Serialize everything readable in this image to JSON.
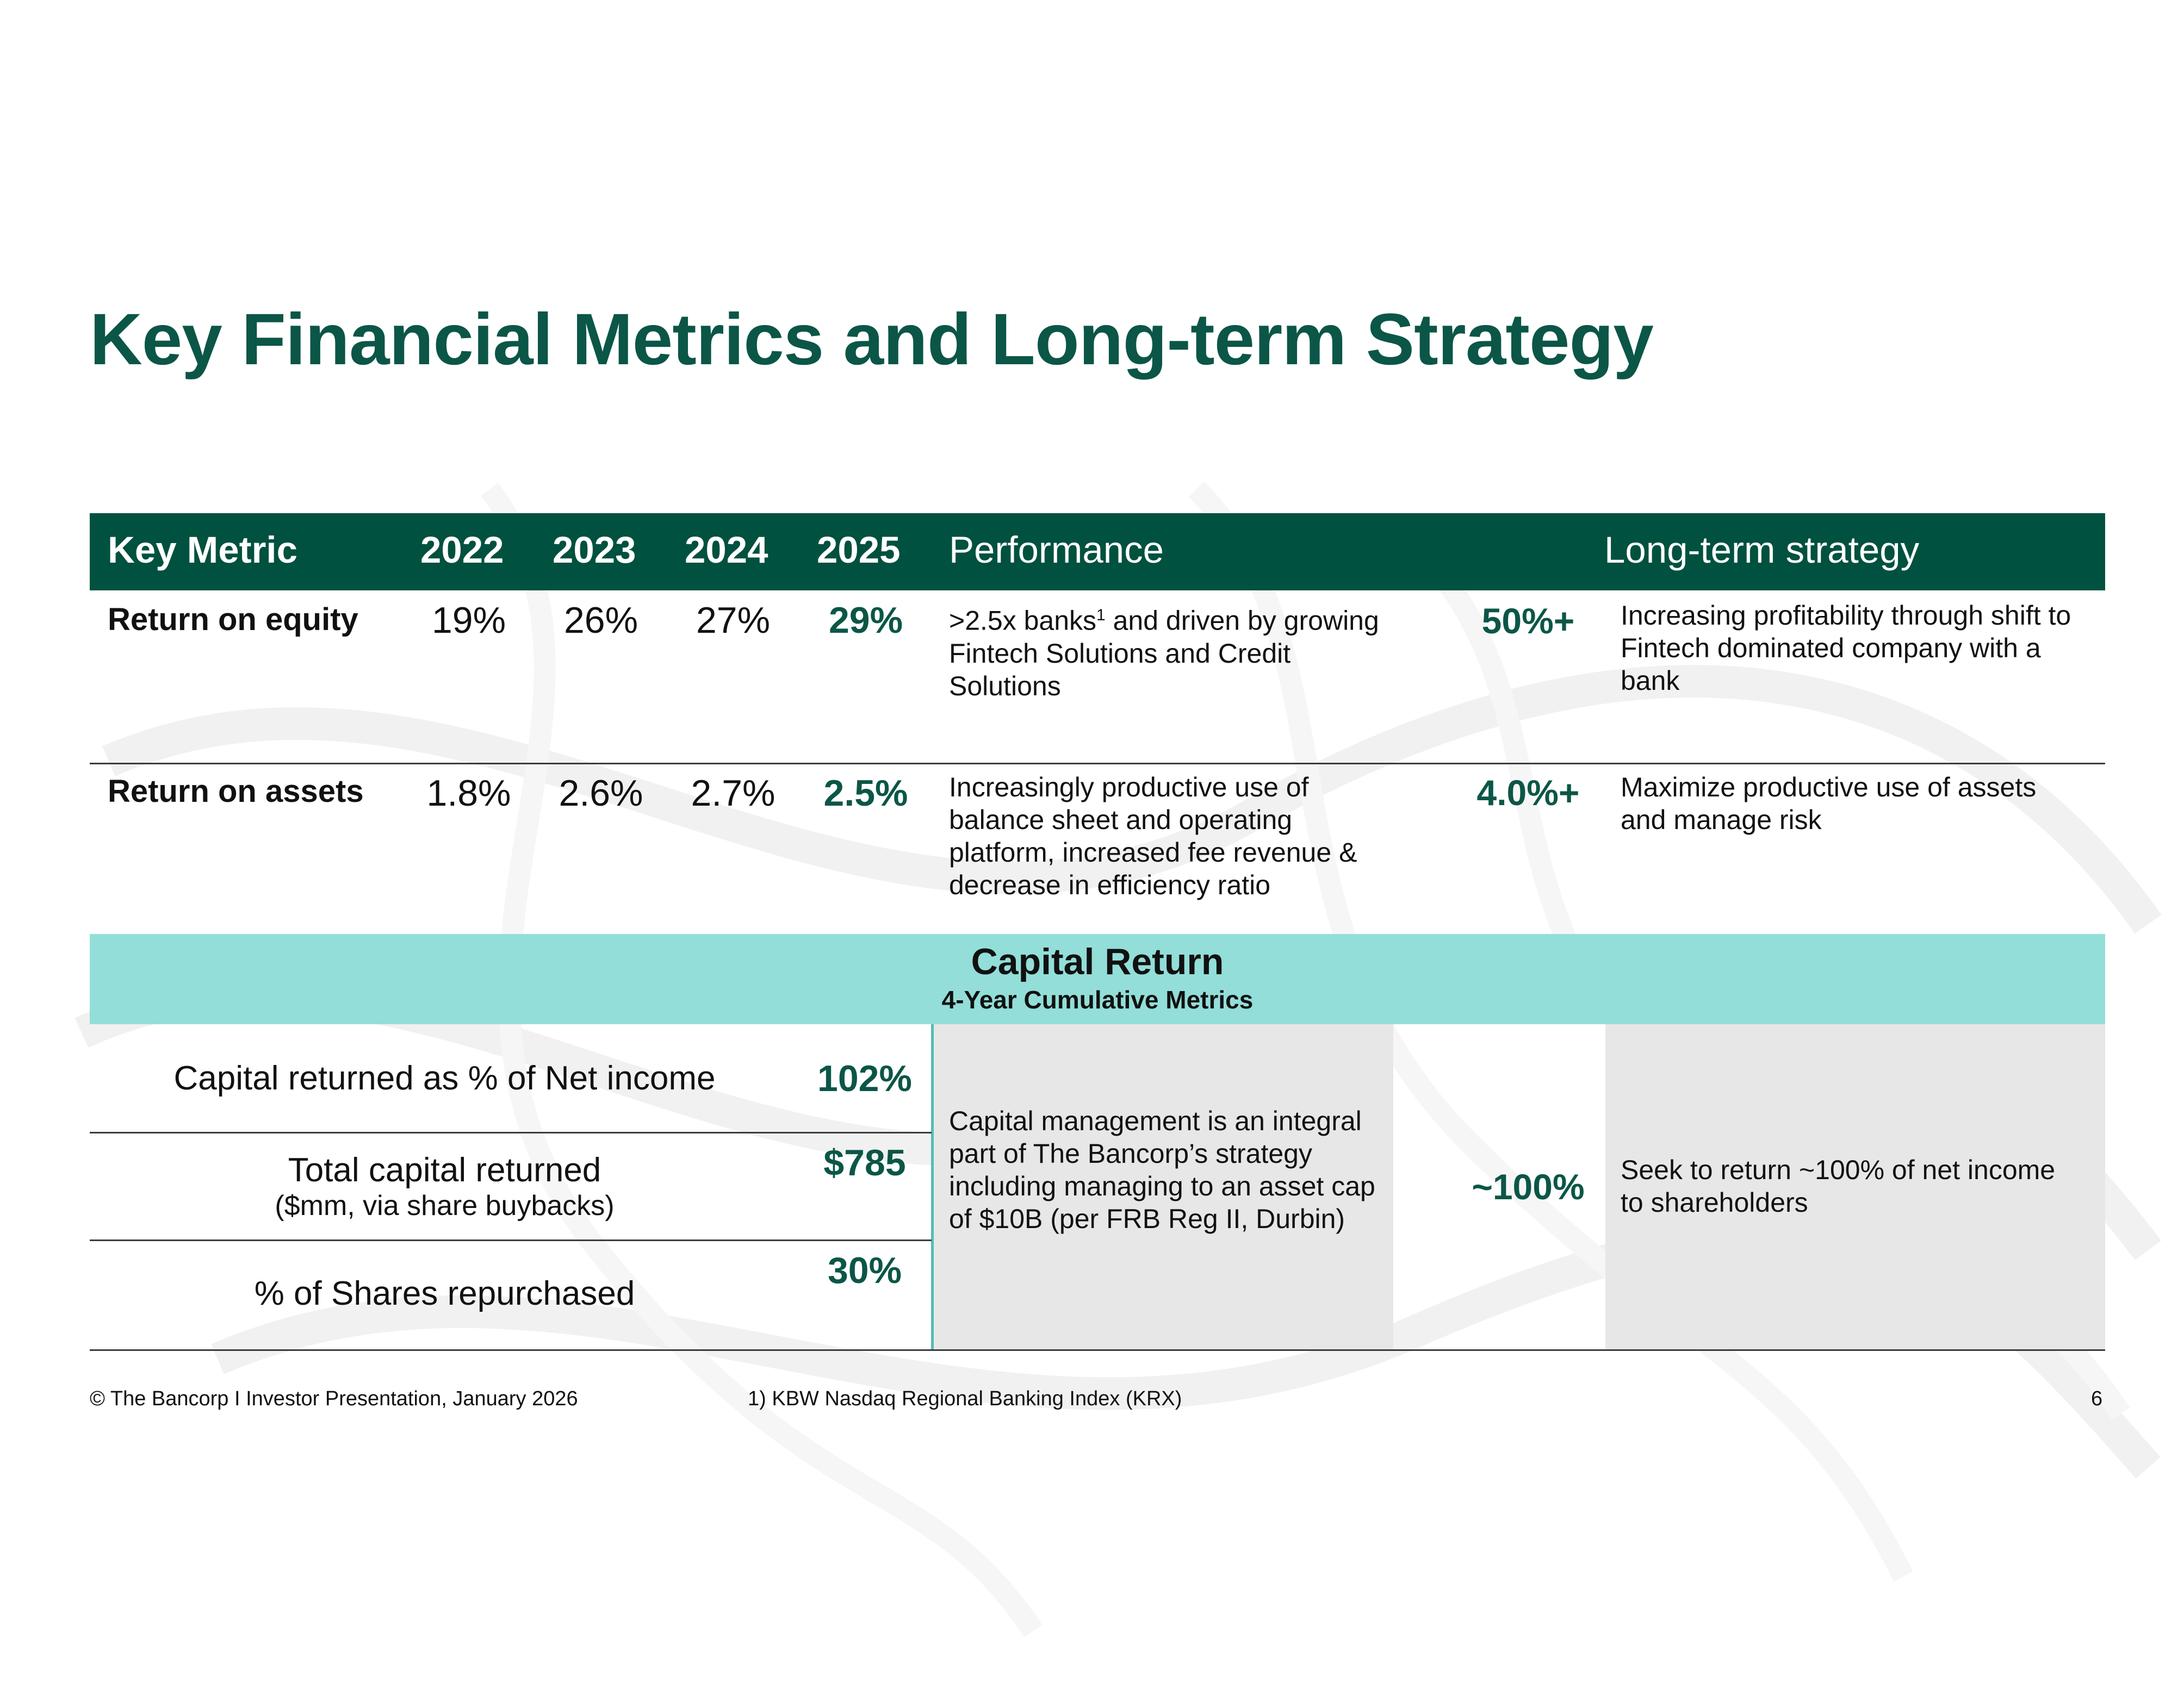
{
  "title": "Key Financial Metrics and Long-term Strategy",
  "header": {
    "key_metric": "Key Metric",
    "years": [
      "2022",
      "2023",
      "2024",
      "2025"
    ],
    "performance": "Performance",
    "long_term_strategy": "Long-term strategy"
  },
  "rows": [
    {
      "label": "Return on equity",
      "values": [
        "19%",
        "26%",
        "27%",
        "29%"
      ],
      "performance": ">2.5x banks",
      "performance_sup": "1",
      "performance_rest": " and driven by growing Fintech Solutions and Credit Solutions",
      "target": "50%+",
      "strategy": "Increasing profitability through shift to Fintech dominated company with a bank"
    },
    {
      "label": "Return on assets",
      "values": [
        "1.8%",
        "2.6%",
        "2.7%",
        "2.5%"
      ],
      "performance": "Increasingly productive use of balance sheet and operating platform, increased fee revenue & decrease in efficiency ratio",
      "target": "4.0%+",
      "strategy": "Maximize productive use of assets and manage risk"
    }
  ],
  "capital_return": {
    "title": "Capital Return",
    "subtitle": "4-Year Cumulative Metrics",
    "items": [
      {
        "label": "Capital returned as % of Net income",
        "value": "102%"
      },
      {
        "label": "Total capital returned",
        "note": "($mm, via share buybacks)",
        "value": "$785"
      },
      {
        "label": "% of Shares repurchased",
        "value": "30%"
      }
    ],
    "performance": "Capital management is an integral part of The Bancorp’s strategy including managing to an asset cap of $10B (per FRB Reg II, Durbin)",
    "target": "~100%",
    "strategy": "Seek to return ~100% of net income to shareholders"
  },
  "footer": {
    "left": "© The Bancorp  I  Investor Presentation, January 2026",
    "footnote": "1) KBW Nasdaq Regional Banking Index (KRX)",
    "page_number": "6"
  },
  "colors": {
    "title_green": "#0b5647",
    "header_green": "#00513f",
    "capital_band": "#93ded9",
    "grey_box": "#e7e7e7",
    "teal_line": "#56bcb4"
  }
}
